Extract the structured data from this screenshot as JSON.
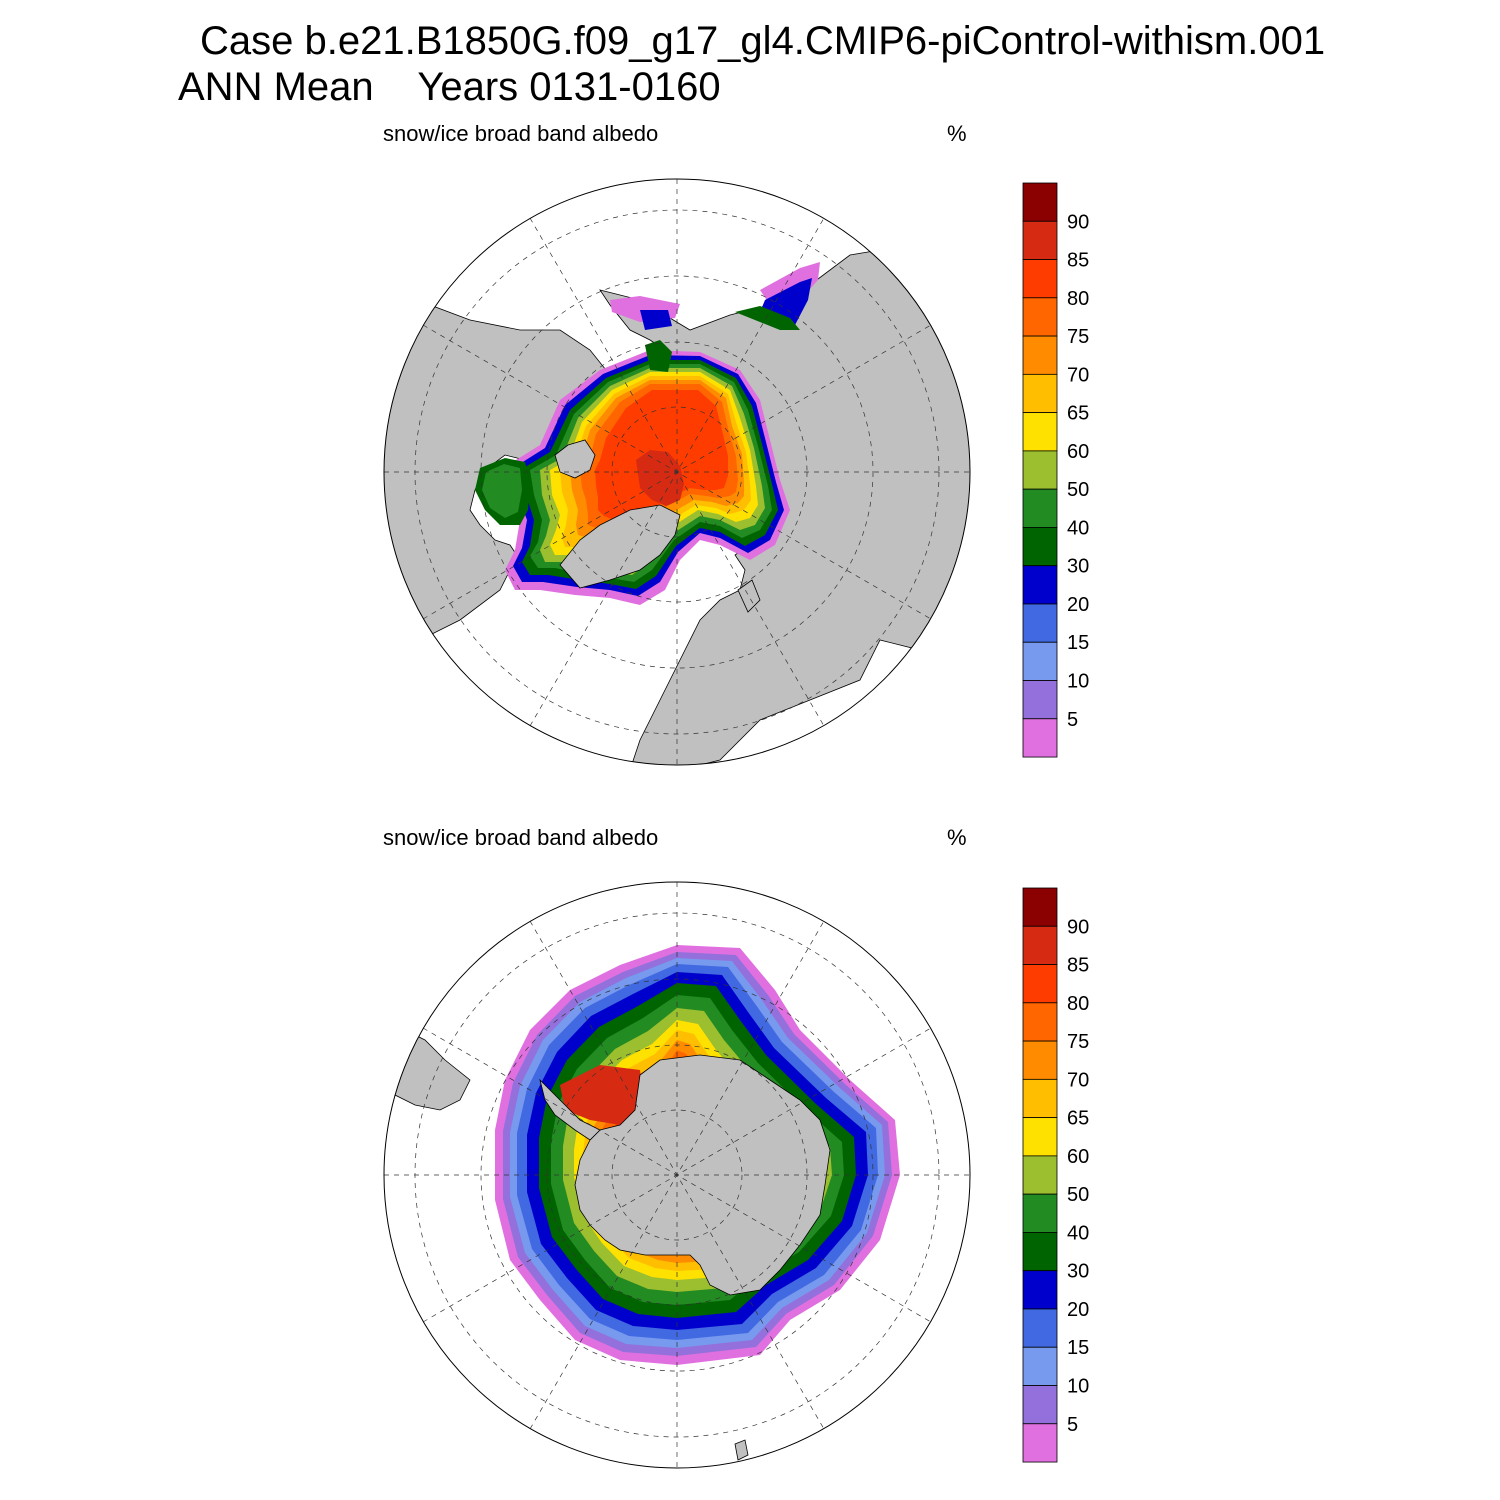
{
  "header": {
    "case_title": "Case b.e21.B1850G.f09_g17_gl4.CMIP6-piControl-withism.001",
    "season": "ANN Mean",
    "years": "Years 0131-0160"
  },
  "panels": [
    {
      "id": "nh",
      "title": "snow/ice broad band albedo",
      "units": "%"
    },
    {
      "id": "sh",
      "title": "snow/ice broad band albedo",
      "units": "%"
    }
  ],
  "colorbar": {
    "labels": [
      "90",
      "85",
      "80",
      "75",
      "70",
      "65",
      "60",
      "50",
      "40",
      "30",
      "20",
      "15",
      "10",
      "5"
    ],
    "colors": [
      "#8b0000",
      "#d62b12",
      "#ff3c00",
      "#ff6600",
      "#ff8c00",
      "#ffbe00",
      "#ffe100",
      "#9cbf2f",
      "#228b22",
      "#006400",
      "#0000cd",
      "#4169e1",
      "#7799ee",
      "#9370db",
      "#e070e0"
    ]
  },
  "colors": {
    "land": "#c0c0c0",
    "ocean": "#ffffff"
  }
}
